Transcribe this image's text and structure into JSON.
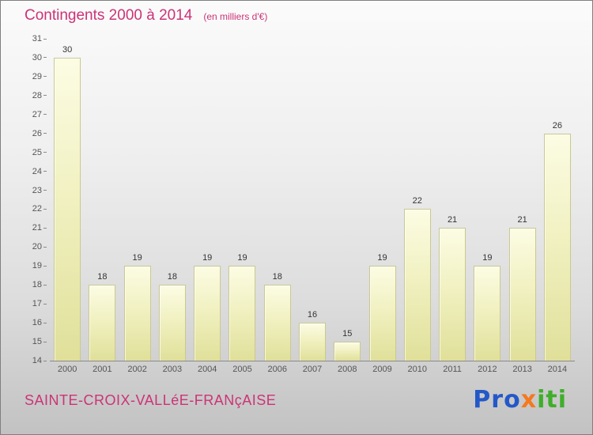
{
  "header": {
    "title": "Contingents 2000 à 2014",
    "subtitle": "(en milliers d'€)"
  },
  "chart_data": {
    "type": "bar",
    "categories": [
      "2000",
      "2001",
      "2002",
      "2003",
      "2004",
      "2005",
      "2006",
      "2007",
      "2008",
      "2009",
      "2010",
      "2011",
      "2012",
      "2013",
      "2014"
    ],
    "values": [
      30,
      18,
      19,
      18,
      19,
      19,
      18,
      16,
      15,
      19,
      22,
      21,
      19,
      21,
      26
    ],
    "title": "Contingents 2000 à 2014",
    "subtitle": "(en milliers d'€)",
    "xlabel": "",
    "ylabel": "",
    "ylim": [
      14,
      31
    ],
    "ytick_step": 1,
    "grid": false,
    "legend": "none",
    "bar_color_top": "#fcfce4",
    "bar_color_bottom": "#e0e09a",
    "axis_color": "#8a8a8a",
    "label_color": "#333333"
  },
  "footer": {
    "location": "SAINTE-CROIX-VALLéE-FRANçAISE",
    "brand": {
      "name": "Proxiti",
      "letters": [
        {
          "ch": "P",
          "color": "#2458c8"
        },
        {
          "ch": "r",
          "color": "#2458c8"
        },
        {
          "ch": "o",
          "color": "#2458c8"
        },
        {
          "ch": "x",
          "color": "#f5791e"
        },
        {
          "ch": "i",
          "color": "#3fae2a"
        },
        {
          "ch": "t",
          "color": "#3fae2a"
        },
        {
          "ch": "i",
          "color": "#3fae2a"
        }
      ]
    }
  },
  "theme": {
    "accent_pink": "#cc3377",
    "background_top": "#fbfbfb",
    "background_bottom": "#c2c2c2"
  }
}
